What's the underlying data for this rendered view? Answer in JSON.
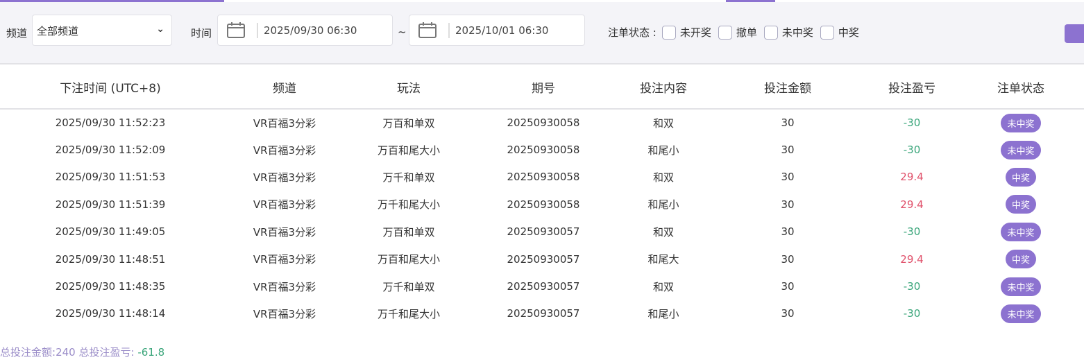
{
  "filter": {
    "channel_label": "频道",
    "channel_value": "全部频道",
    "time_label": "时间",
    "start": "2025/09/30 06:30",
    "sep": "~",
    "end": "2025/10/01 06:30",
    "status_label": "注单状态 :",
    "statuses": [
      "未开奖",
      "撤单",
      "未中奖",
      "中奖"
    ]
  },
  "colors": {
    "accent": "#8c72d0",
    "loss": "#3aa57a",
    "win": "#e0506a"
  },
  "table": {
    "headers": [
      "下注时间 (UTC+8)",
      "频道",
      "玩法",
      "期号",
      "投注内容",
      "投注金额",
      "投注盈亏",
      "注单状态"
    ],
    "rows": [
      [
        "2025/09/30 11:52:23",
        "VR百福3分彩",
        "万百和单双",
        "20250930058",
        "和双",
        "30",
        "-30",
        "未中奖"
      ],
      [
        "2025/09/30 11:52:09",
        "VR百福3分彩",
        "万百和尾大小",
        "20250930058",
        "和尾小",
        "30",
        "-30",
        "未中奖"
      ],
      [
        "2025/09/30 11:51:53",
        "VR百福3分彩",
        "万千和单双",
        "20250930058",
        "和双",
        "30",
        "29.4",
        "中奖"
      ],
      [
        "2025/09/30 11:51:39",
        "VR百福3分彩",
        "万千和尾大小",
        "20250930058",
        "和尾小",
        "30",
        "29.4",
        "中奖"
      ],
      [
        "2025/09/30 11:49:05",
        "VR百福3分彩",
        "万百和单双",
        "20250930057",
        "和双",
        "30",
        "-30",
        "未中奖"
      ],
      [
        "2025/09/30 11:48:51",
        "VR百福3分彩",
        "万百和尾大小",
        "20250930057",
        "和尾大",
        "30",
        "29.4",
        "中奖"
      ],
      [
        "2025/09/30 11:48:35",
        "VR百福3分彩",
        "万千和单双",
        "20250930057",
        "和双",
        "30",
        "-30",
        "未中奖"
      ],
      [
        "2025/09/30 11:48:14",
        "VR百福3分彩",
        "万千和尾大小",
        "20250930057",
        "和尾小",
        "30",
        "-30",
        "未中奖"
      ]
    ]
  },
  "summary": {
    "amount_label": "总投注金额:",
    "amount": "240",
    "pl_label": "总投注盈亏:",
    "pl": "-61.8"
  }
}
